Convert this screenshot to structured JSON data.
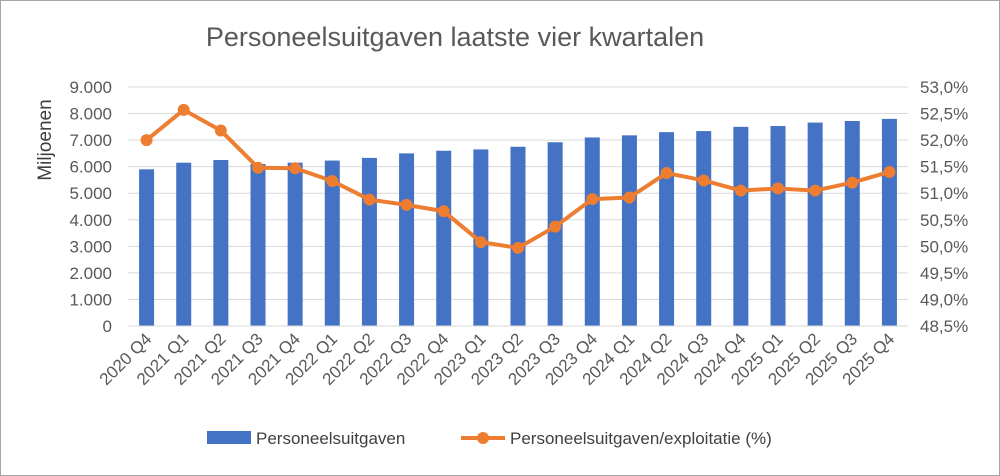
{
  "chart_data": {
    "type": "bar+line",
    "title": "Personeelsuitgaven laatste vier kwartalen",
    "ylabel": "Miljoenen",
    "ylim": [
      0,
      9000
    ],
    "y2lim": [
      48.5,
      53.0
    ],
    "yticks": [
      "0",
      "1.000",
      "2.000",
      "3.000",
      "4.000",
      "5.000",
      "6.000",
      "7.000",
      "8.000",
      "9.000"
    ],
    "y2ticks": [
      "48,5%",
      "49,0%",
      "49,5%",
      "50,0%",
      "50,5%",
      "51,0%",
      "51,5%",
      "52,0%",
      "52,5%",
      "53,0%"
    ],
    "grid": true,
    "legend_position": "bottom",
    "categories": [
      "2020 Q4",
      "2021 Q1",
      "2021 Q2",
      "2021 Q3",
      "2021 Q4",
      "2022 Q1",
      "2022 Q2",
      "2022 Q3",
      "2022 Q4",
      "2023 Q1",
      "2023 Q2",
      "2023 Q3",
      "2023 Q4",
      "2024 Q1",
      "2024 Q2",
      "2024 Q3",
      "2024 Q4",
      "2025 Q1",
      "2025 Q2",
      "2025 Q3",
      "2025 Q4"
    ],
    "series": [
      {
        "name": "Personeelsuitgaven",
        "type": "bar",
        "axis": "left",
        "color": "#4472c4",
        "values": [
          5900,
          6150,
          6250,
          6100,
          6150,
          6230,
          6330,
          6500,
          6600,
          6650,
          6750,
          6920,
          7100,
          7180,
          7300,
          7340,
          7500,
          7530,
          7660,
          7720,
          7800
        ]
      },
      {
        "name": "Personeelsuitgaven/exploitatie (%)",
        "type": "line",
        "axis": "right",
        "color": "#ed7d31",
        "values": [
          52.0,
          52.57,
          52.18,
          51.48,
          51.47,
          51.23,
          50.88,
          50.78,
          50.66,
          50.08,
          49.97,
          50.37,
          50.89,
          50.92,
          51.38,
          51.24,
          51.05,
          51.09,
          51.05,
          51.2,
          51.4
        ]
      }
    ]
  }
}
